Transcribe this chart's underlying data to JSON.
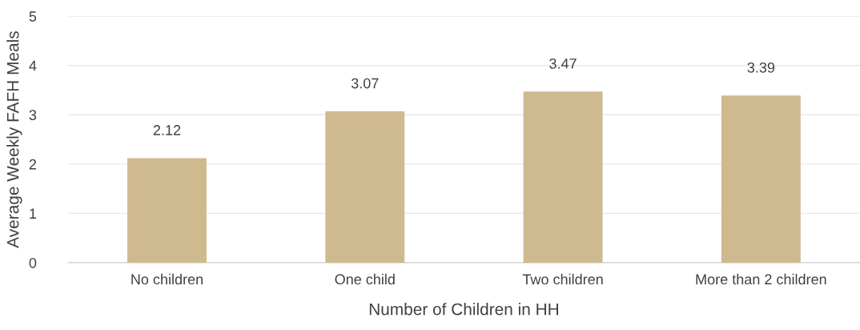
{
  "chart_data": {
    "type": "bar",
    "xlabel": "Number of Children in HH",
    "ylabel": "Average Weekly FAFH Meals",
    "categories": [
      "No children",
      "One child",
      "Two children",
      "More than 2 children"
    ],
    "values": [
      2.12,
      3.07,
      3.47,
      3.39
    ],
    "color": "#cfb98f",
    "data_labels": true,
    "ylim": [
      0,
      5
    ],
    "yticks": [
      0,
      1,
      2,
      3,
      4,
      5
    ],
    "grid": "y",
    "legend": false
  }
}
